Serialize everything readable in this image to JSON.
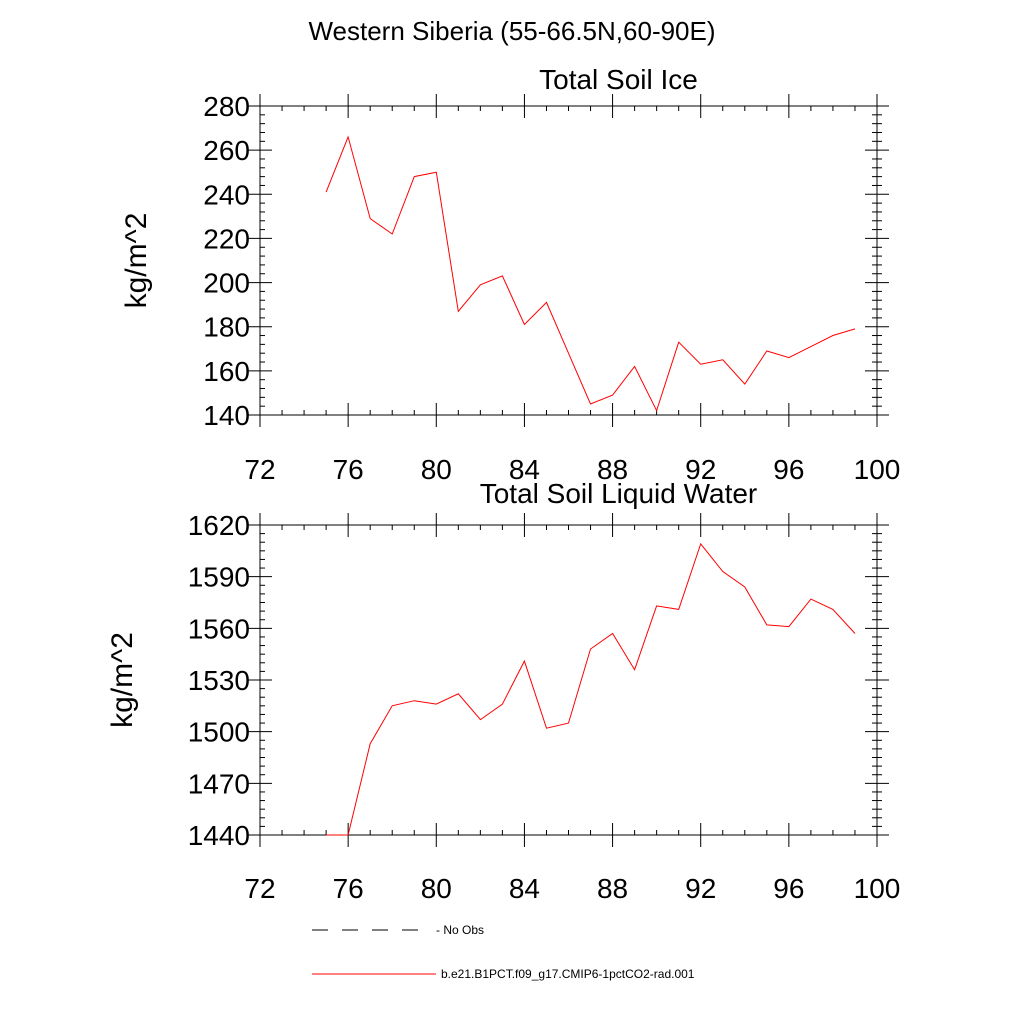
{
  "figure": {
    "title": "Western Siberia (55-66.5N,60-90E)"
  },
  "legend": {
    "placement": "bottom-left",
    "entries": [
      {
        "label": "No Obs",
        "color": "#000000",
        "style": "dashed"
      },
      {
        "label": "b.e21.B1PCT.f09_g17.CMIP6-1pctCO2-rad.001",
        "color": "#ff0000",
        "style": "solid"
      }
    ]
  },
  "chart_data": [
    {
      "type": "line",
      "title": "Total Soil Ice",
      "xlabel": "",
      "ylabel": "kg/m^2",
      "xlim": [
        72,
        100
      ],
      "ylim": [
        140,
        280
      ],
      "xticks": [
        72,
        76,
        80,
        84,
        88,
        92,
        96,
        100
      ],
      "yticks": [
        140,
        160,
        180,
        200,
        220,
        240,
        260,
        280
      ],
      "yminor": 5,
      "grid": false,
      "series": [
        {
          "color": "#ff0000",
          "x": [
            75,
            76,
            77,
            78,
            79,
            80,
            81,
            82,
            83,
            84,
            85,
            86,
            87,
            88,
            89,
            90,
            91,
            92,
            93,
            94,
            95,
            96,
            97,
            98,
            99
          ],
          "y": [
            241,
            266,
            229,
            222,
            248,
            250,
            187,
            199,
            203,
            181,
            191,
            168,
            145,
            149,
            162,
            142,
            173,
            163,
            165,
            154,
            169,
            166,
            171,
            176,
            179
          ]
        }
      ]
    },
    {
      "type": "line",
      "title": "Total Soil Liquid Water",
      "xlabel": "",
      "ylabel": "kg/m^2",
      "xlim": [
        72,
        100
      ],
      "ylim": [
        1440,
        1620
      ],
      "xticks": [
        72,
        76,
        80,
        84,
        88,
        92,
        96,
        100
      ],
      "yticks": [
        1440,
        1470,
        1500,
        1530,
        1560,
        1590,
        1620
      ],
      "yminor": 6,
      "grid": false,
      "series": [
        {
          "color": "#ff0000",
          "x": [
            75,
            76,
            77,
            78,
            79,
            80,
            81,
            82,
            83,
            84,
            85,
            86,
            87,
            88,
            89,
            90,
            91,
            92,
            93,
            94,
            95,
            96,
            97,
            98,
            99
          ],
          "y": [
            1440,
            1440,
            1493,
            1515,
            1518,
            1516,
            1522,
            1507,
            1516,
            1541,
            1502,
            1505,
            1548,
            1557,
            1536,
            1573,
            1571,
            1609,
            1593,
            1584,
            1562,
            1561,
            1577,
            1571,
            1557
          ]
        }
      ]
    }
  ]
}
